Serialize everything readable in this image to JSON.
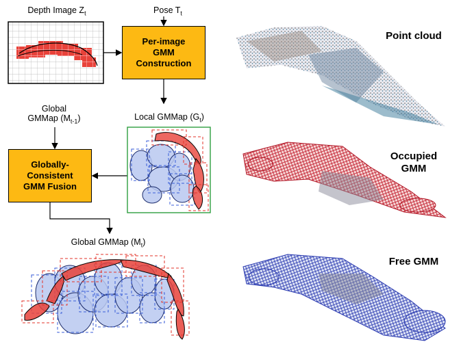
{
  "labels": {
    "depth_image": "Depth Image Z",
    "depth_image_sub": "t",
    "pose": "Pose T",
    "pose_sub": "t",
    "local_gmmap": "Local GMMap (G",
    "local_gmmap_sub": "t",
    "local_gmmap_close": ")",
    "global_gmmap_prev_line1": "Global",
    "global_gmmap_prev_line2": "GMMap (M",
    "global_gmmap_prev_sub": "t-1",
    "global_gmmap_prev_close": ")",
    "global_gmmap": "Global GMMap (M",
    "global_gmmap_sub": "t",
    "global_gmmap_close": ")"
  },
  "boxes": {
    "per_image_line1": "Per-image",
    "per_image_line2": "GMM",
    "per_image_line3": "Construction",
    "fusion_line1": "Globally-",
    "fusion_line2": "Consistent",
    "fusion_line3": "GMM Fusion"
  },
  "renders": {
    "point_cloud": "Point cloud",
    "occupied_line1": "Occupied",
    "occupied_line2": "GMM",
    "free": "Free GMM"
  },
  "colors": {
    "box_fill": "#fdb913",
    "occupied_red": "#e8423a",
    "free_blue": "#b8c8f0",
    "free_blue_edge": "#2a56c8",
    "local_frame": "#2e9e3e"
  }
}
